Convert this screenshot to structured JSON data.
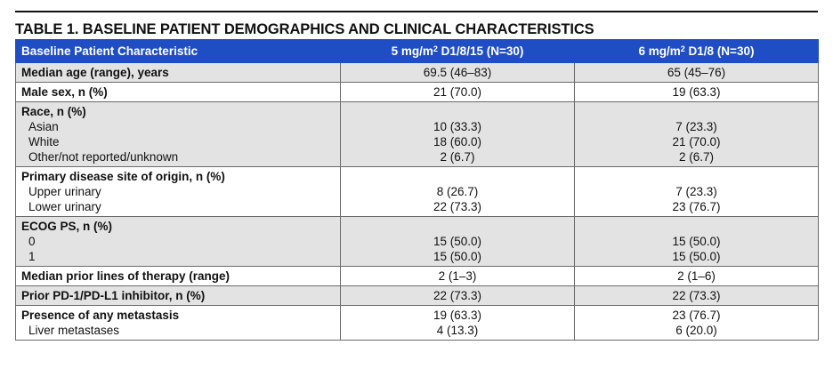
{
  "title": "TABLE 1. BASELINE PATIENT DEMOGRAPHICS AND CLINICAL CHARACTERISTICS",
  "header": {
    "col1": "Baseline Patient Characteristic",
    "col2_pre": "5 mg/m",
    "col2_sup": "2",
    "col2_post": " D1/8/15 (N=30)",
    "col3_pre": "6 mg/m",
    "col3_sup": "2",
    "col3_post": " D1/8 (N=30)"
  },
  "rows": [
    {
      "label": "Median age (range), years",
      "a": "69.5 (46–83)",
      "b": "65 (45–76)"
    },
    {
      "label": "Male sex, n (%)",
      "a": "21 (70.0)",
      "b": "19 (63.3)"
    },
    {
      "label": "Race, n (%)",
      "a": "",
      "b": "",
      "subs": [
        {
          "label": "Asian",
          "a": "10 (33.3)",
          "b": "7 (23.3)"
        },
        {
          "label": "White",
          "a": "18 (60.0)",
          "b": "21 (70.0)"
        },
        {
          "label": "Other/not reported/unknown",
          "a": "2 (6.7)",
          "b": "2 (6.7)"
        }
      ]
    },
    {
      "label": "Primary disease site of origin, n (%)",
      "a": "",
      "b": "",
      "subs": [
        {
          "label": "Upper urinary",
          "a": "8 (26.7)",
          "b": "7 (23.3)"
        },
        {
          "label": "Lower urinary",
          "a": "22 (73.3)",
          "b": "23 (76.7)"
        }
      ]
    },
    {
      "label": "ECOG PS, n (%)",
      "a": "",
      "b": "",
      "subs": [
        {
          "label": "0",
          "a": "15 (50.0)",
          "b": "15 (50.0)"
        },
        {
          "label": "1",
          "a": "15 (50.0)",
          "b": "15 (50.0)"
        }
      ]
    },
    {
      "label": "Median prior lines of therapy (range)",
      "a": "2 (1–3)",
      "b": "2 (1–6)"
    },
    {
      "label": "Prior PD-1/PD-L1 inhibitor, n (%)",
      "a": "22 (73.3)",
      "b": "22 (73.3)"
    },
    {
      "label": "Presence of any metastasis",
      "a": "19 (63.3)",
      "b": "23 (76.7)",
      "subs": [
        {
          "label": "Liver metastases",
          "a": "4 (13.3)",
          "b": "6 (20.0)"
        }
      ]
    }
  ]
}
